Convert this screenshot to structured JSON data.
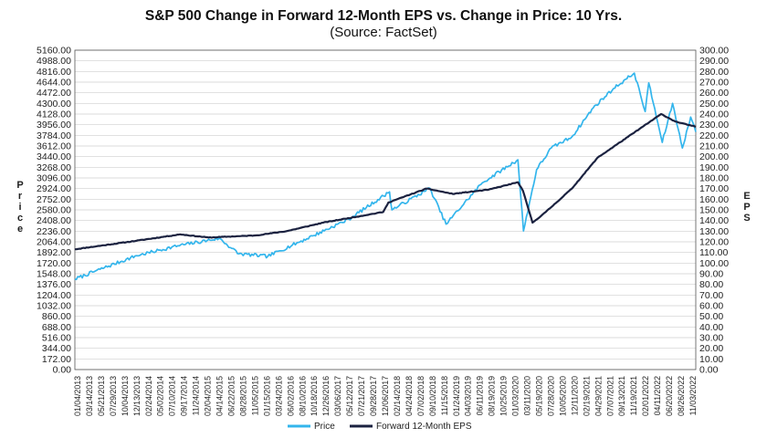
{
  "chart_data": {
    "type": "line",
    "title": "S&P 500 Change in Forward 12-Month EPS vs. Change in Price: 10 Yrs.",
    "subtitle": "(Source: FactSet)",
    "ylabel_left": "Price",
    "ylabel_right": "EPS",
    "ylim_left": [
      0,
      5160
    ],
    "ylim_right": [
      0,
      300
    ],
    "yticks_left": [
      "5160.00",
      "4988.00",
      "4816.00",
      "4644.00",
      "4472.00",
      "4300.00",
      "4128.00",
      "3956.00",
      "3784.00",
      "3612.00",
      "3440.00",
      "3268.00",
      "3096.00",
      "2924.00",
      "2752.00",
      "2580.00",
      "2408.00",
      "2236.00",
      "2064.00",
      "1892.00",
      "1720.00",
      "1548.00",
      "1376.00",
      "1204.00",
      "1032.00",
      "860.00",
      "688.00",
      "516.00",
      "344.00",
      "172.00",
      "0.00"
    ],
    "yticks_right": [
      "300.00",
      "290.00",
      "280.00",
      "270.00",
      "260.00",
      "250.00",
      "240.00",
      "230.00",
      "220.00",
      "210.00",
      "200.00",
      "190.00",
      "180.00",
      "170.00",
      "160.00",
      "150.00",
      "140.00",
      "130.00",
      "120.00",
      "110.00",
      "100.00",
      "90.00",
      "80.00",
      "70.00",
      "60.00",
      "50.00",
      "40.00",
      "30.00",
      "20.00",
      "10.00",
      "0.00"
    ],
    "xticks": [
      "01/04/2013",
      "03/14/2013",
      "05/21/2013",
      "07/29/2013",
      "10/04/2013",
      "12/13/2013",
      "02/24/2014",
      "05/02/2014",
      "07/10/2014",
      "09/17/2014",
      "11/24/2014",
      "02/04/2015",
      "04/14/2015",
      "06/22/2015",
      "08/28/2015",
      "11/05/2015",
      "01/15/2016",
      "03/24/2016",
      "06/02/2016",
      "08/10/2016",
      "10/18/2016",
      "12/26/2016",
      "03/06/2017",
      "05/12/2017",
      "07/21/2017",
      "09/28/2017",
      "12/06/2017",
      "02/14/2018",
      "04/24/2018",
      "07/02/2018",
      "09/10/2018",
      "11/15/2018",
      "01/24/2019",
      "04/03/2019",
      "06/11/2019",
      "08/19/2019",
      "10/25/2019",
      "01/03/2020",
      "03/11/2020",
      "05/19/2020",
      "07/28/2020",
      "10/05/2020",
      "12/11/2020",
      "02/19/2021",
      "04/29/2021",
      "07/07/2021",
      "09/13/2021",
      "11/19/2021",
      "02/01/2022",
      "04/11/2022",
      "06/20/2022",
      "08/26/2022",
      "11/03/2022"
    ],
    "xlim": [
      "2013-01-04",
      "2022-12-30"
    ],
    "grid": true,
    "legend_position": "bottom",
    "colors": {
      "price": "#33b5ec",
      "eps": "#1b2240"
    },
    "series": [
      {
        "name": "Price",
        "axis": "left",
        "x": [
          "2013-01-04",
          "2013-06-01",
          "2014-01-01",
          "2014-09-01",
          "2015-05-01",
          "2015-08-25",
          "2016-02-11",
          "2016-11-01",
          "2017-06-01",
          "2018-01-26",
          "2018-02-09",
          "2018-09-20",
          "2018-12-24",
          "2019-07-26",
          "2020-02-19",
          "2020-03-23",
          "2020-06-08",
          "2020-09-02",
          "2021-01-01",
          "2021-05-07",
          "2021-09-02",
          "2022-01-03",
          "2022-03-08",
          "2022-03-29",
          "2022-06-16",
          "2022-08-16",
          "2022-10-12",
          "2022-11-30",
          "2022-12-30"
        ],
        "values": [
          1460,
          1620,
          1840,
          2000,
          2120,
          1870,
          1830,
          2160,
          2430,
          2870,
          2580,
          2930,
          2350,
          3020,
          3390,
          2240,
          3230,
          3580,
          3760,
          4230,
          4540,
          4790,
          4170,
          4630,
          3670,
          4300,
          3580,
          4080,
          3840
        ]
      },
      {
        "name": "Forward 12-Month EPS",
        "axis": "right",
        "x": [
          "2013-01-04",
          "2014-01-01",
          "2014-09-15",
          "2015-03-01",
          "2015-12-01",
          "2016-06-01",
          "2017-01-01",
          "2017-12-20",
          "2018-01-20",
          "2018-09-01",
          "2019-02-01",
          "2019-09-01",
          "2020-02-20",
          "2020-03-20",
          "2020-05-15",
          "2020-08-01",
          "2021-01-01",
          "2021-06-01",
          "2022-06-10",
          "2022-09-01",
          "2022-12-30"
        ],
        "values": [
          113,
          121,
          127,
          124,
          126,
          130,
          138,
          148,
          157,
          170,
          165,
          169,
          176,
          168,
          138,
          148,
          170,
          199,
          240,
          233,
          228
        ]
      }
    ]
  }
}
